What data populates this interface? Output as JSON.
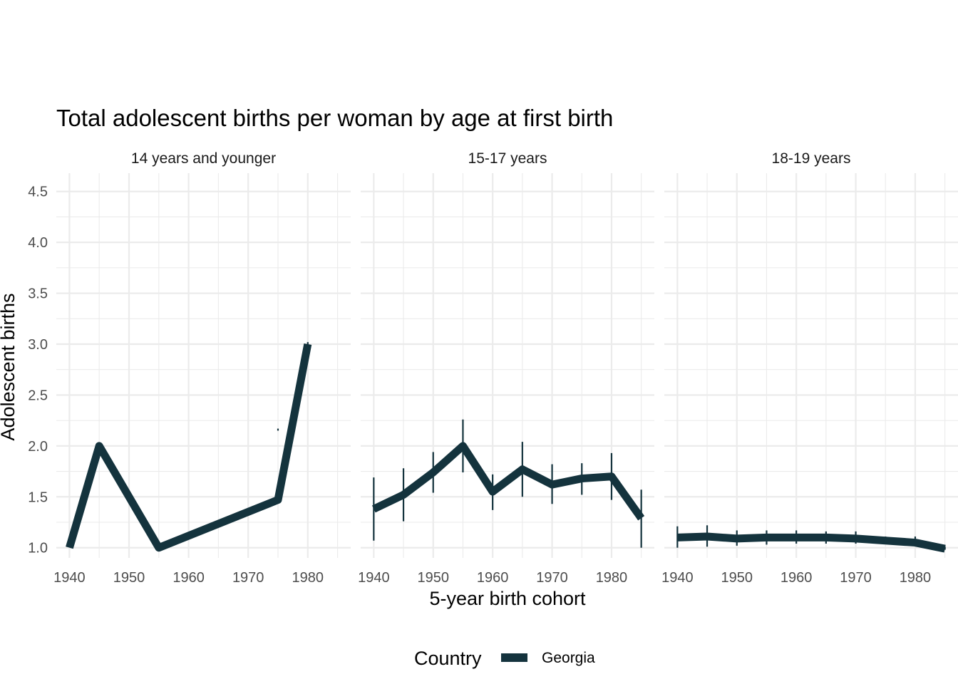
{
  "chart_data": {
    "type": "line",
    "title": "Total adolescent births per woman by age at first birth",
    "xlabel": "5-year birth cohort",
    "ylabel": "Adolescent births",
    "xlim": [
      1937.8,
      1987.2
    ],
    "ylim": [
      0.9,
      4.68
    ],
    "x_ticks": [
      1940,
      1950,
      1960,
      1970,
      1980
    ],
    "y_ticks": [
      1.0,
      1.5,
      2.0,
      2.5,
      3.0,
      3.5,
      4.0,
      4.5
    ],
    "y_tick_labels": [
      "1.0",
      "1.5",
      "2.0",
      "2.5",
      "3.0",
      "3.5",
      "4.0",
      "4.5"
    ],
    "grid": true,
    "legend": {
      "title": "Country",
      "position": "bottom",
      "entries": [
        {
          "label": "Georgia",
          "color": "#14333d"
        }
      ]
    },
    "color": "#14333d",
    "panels": [
      {
        "label": "14 years and younger",
        "series": [
          {
            "name": "Georgia",
            "points": [
              {
                "x": 1940,
                "y": 1.0,
                "lo": 1.0,
                "hi": 1.0
              },
              {
                "x": 1945,
                "y": 2.0,
                "lo": 2.0,
                "hi": 2.0
              },
              {
                "x": 1955,
                "y": 1.0,
                "lo": 1.0,
                "hi": 1.0
              },
              {
                "x": 1975,
                "y": 1.47,
                "lo": 1.47,
                "hi": 1.47
              },
              {
                "x": 1980,
                "y": 3.0,
                "lo": 2.98,
                "hi": 3.02
              }
            ],
            "extra_errorbars": [
              {
                "x": 1975,
                "lo": 2.15,
                "hi": 2.17
              }
            ]
          }
        ]
      },
      {
        "label": "15-17 years",
        "series": [
          {
            "name": "Georgia",
            "points": [
              {
                "x": 1940,
                "y": 1.38,
                "lo": 1.07,
                "hi": 1.69
              },
              {
                "x": 1945,
                "y": 1.52,
                "lo": 1.26,
                "hi": 1.78
              },
              {
                "x": 1950,
                "y": 1.74,
                "lo": 1.54,
                "hi": 1.94
              },
              {
                "x": 1955,
                "y": 2.0,
                "lo": 1.74,
                "hi": 2.26
              },
              {
                "x": 1960,
                "y": 1.55,
                "lo": 1.37,
                "hi": 1.72
              },
              {
                "x": 1965,
                "y": 1.77,
                "lo": 1.5,
                "hi": 2.04
              },
              {
                "x": 1970,
                "y": 1.62,
                "lo": 1.43,
                "hi": 1.82
              },
              {
                "x": 1975,
                "y": 1.68,
                "lo": 1.52,
                "hi": 1.83
              },
              {
                "x": 1980,
                "y": 1.7,
                "lo": 1.47,
                "hi": 1.93
              },
              {
                "x": 1985,
                "y": 1.29,
                "lo": 1.0,
                "hi": 1.57
              }
            ]
          }
        ]
      },
      {
        "label": "18-19 years",
        "series": [
          {
            "name": "Georgia",
            "points": [
              {
                "x": 1940,
                "y": 1.1,
                "lo": 1.0,
                "hi": 1.21
              },
              {
                "x": 1945,
                "y": 1.11,
                "lo": 1.01,
                "hi": 1.22
              },
              {
                "x": 1950,
                "y": 1.09,
                "lo": 1.02,
                "hi": 1.17
              },
              {
                "x": 1955,
                "y": 1.1,
                "lo": 1.03,
                "hi": 1.17
              },
              {
                "x": 1960,
                "y": 1.1,
                "lo": 1.04,
                "hi": 1.17
              },
              {
                "x": 1965,
                "y": 1.1,
                "lo": 1.04,
                "hi": 1.16
              },
              {
                "x": 1970,
                "y": 1.09,
                "lo": 1.04,
                "hi": 1.16
              },
              {
                "x": 1975,
                "y": 1.07,
                "lo": 1.04,
                "hi": 1.11
              },
              {
                "x": 1980,
                "y": 1.05,
                "lo": 1.02,
                "hi": 1.11
              },
              {
                "x": 1985,
                "y": 0.99,
                "lo": 0.98,
                "hi": 1.01
              }
            ]
          }
        ]
      }
    ]
  }
}
